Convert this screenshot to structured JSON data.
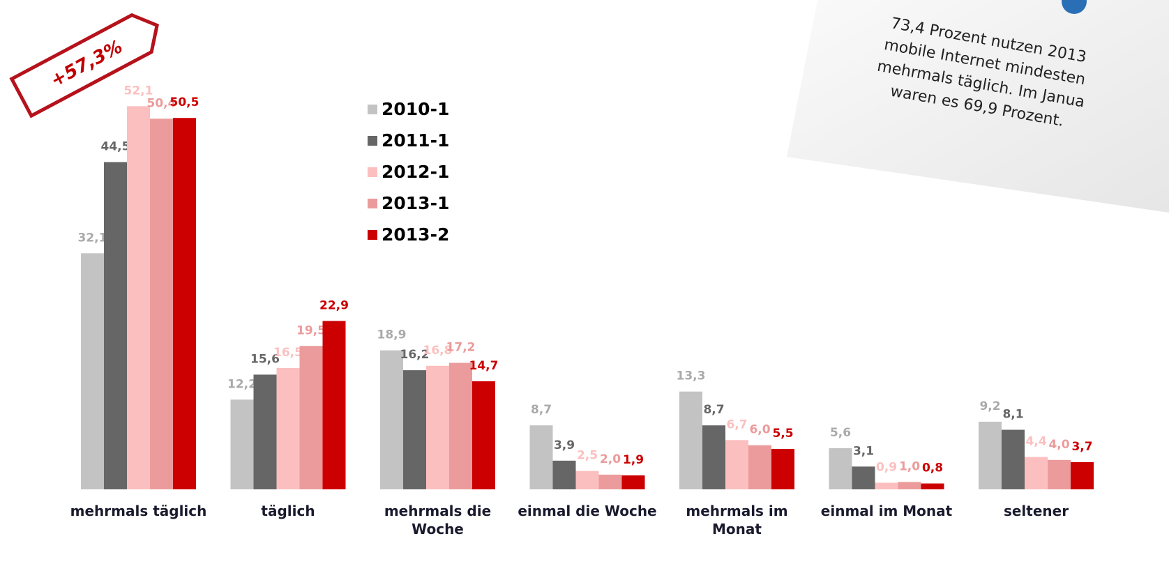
{
  "chart_data": {
    "type": "bar",
    "categories": [
      "mehrmals täglich",
      "täglich",
      "mehrmals die Woche",
      "einmal die Woche",
      "mehrmals im Monat",
      "einmal im Monat",
      "seltener"
    ],
    "series": [
      {
        "name": "2010-1",
        "color": "#c3c3c3",
        "values": [
          32.1,
          12.2,
          18.9,
          8.7,
          13.3,
          5.6,
          9.2
        ],
        "value_labels": [
          "32,1",
          "12,2",
          "18,9",
          "8,7",
          "13,3",
          "5,6",
          "9,2"
        ]
      },
      {
        "name": "2011-1",
        "color": "#666666",
        "values": [
          44.5,
          15.6,
          16.2,
          3.9,
          8.7,
          3.1,
          8.1
        ],
        "value_labels": [
          "44,5",
          "15,6",
          "16,2",
          "3,9",
          "8,7",
          "3,1",
          "8,1"
        ]
      },
      {
        "name": "2012-1",
        "color": "#fcbfbf",
        "values": [
          52.1,
          16.5,
          16.8,
          2.5,
          6.7,
          0.9,
          4.4
        ],
        "value_labels": [
          "52,1",
          "16,5",
          "16,8",
          "2,5",
          "6,7",
          "0,9",
          "4,4"
        ]
      },
      {
        "name": "2013-1",
        "color": "#eb9b9b",
        "values": [
          50.4,
          19.5,
          17.2,
          2.0,
          6.0,
          1.0,
          4.0
        ],
        "value_labels": [
          "50,4",
          "19,5",
          "17,2",
          "2,0",
          "6,0",
          "1,0",
          "4,0"
        ]
      },
      {
        "name": "2013-2",
        "color": "#cc0000",
        "values": [
          50.5,
          22.9,
          14.7,
          1.9,
          5.5,
          0.8,
          3.7
        ],
        "value_labels": [
          "50,5",
          "22,9",
          "14,7",
          "1,9",
          "5,5",
          "0,8",
          "3,7"
        ]
      }
    ],
    "annotation": "+57,3%",
    "note": [
      "73,4 Prozent nutzen 2013",
      "mobile Internet mindesten",
      "mehrmals täglich. Im Janua",
      "waren es 69,9 Prozent."
    ]
  }
}
